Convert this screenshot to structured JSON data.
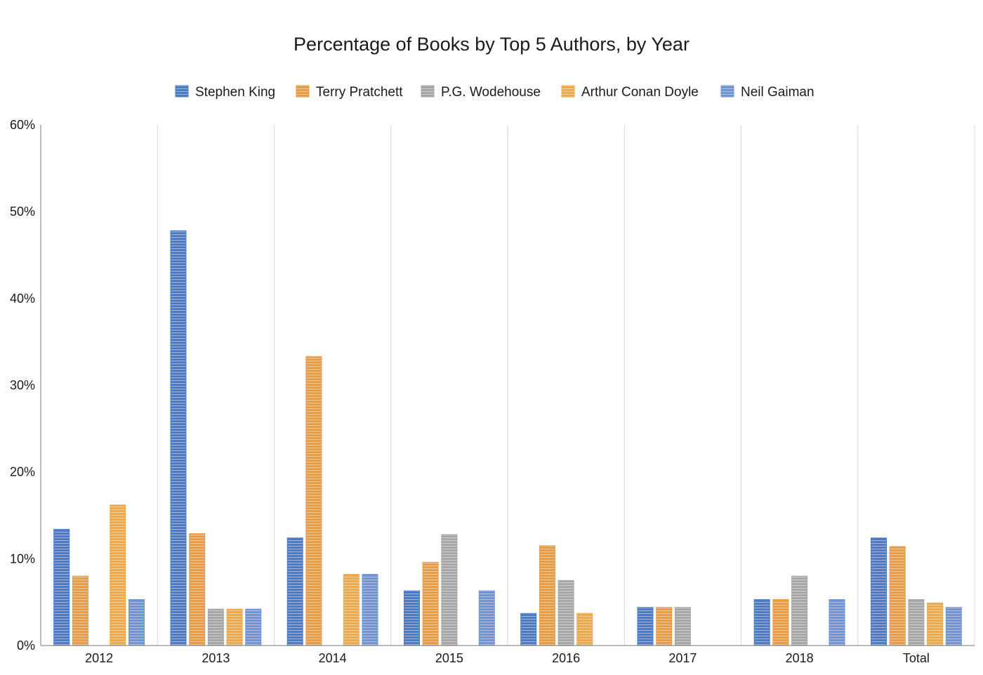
{
  "chart_data": {
    "type": "bar",
    "title": "Percentage of Books by Top 5 Authors, by Year",
    "xlabel": "",
    "ylabel": "",
    "categories": [
      "2012",
      "2013",
      "2014",
      "2015",
      "2016",
      "2017",
      "2018",
      "Total"
    ],
    "ylim": [
      0,
      60
    ],
    "yticks": [
      "0%",
      "10%",
      "20%",
      "30%",
      "40%",
      "50%",
      "60%"
    ],
    "grid": "vertical category separators",
    "legend_position": "top",
    "series": [
      {
        "name": "Stephen King",
        "color": "#4a7cc9",
        "values": [
          13.4,
          47.8,
          12.4,
          6.3,
          3.7,
          4.4,
          5.3,
          12.4
        ]
      },
      {
        "name": "Terry Pratchett",
        "color": "#ee9a3e",
        "values": [
          8.0,
          12.9,
          33.3,
          9.6,
          11.5,
          4.4,
          5.3,
          11.4
        ]
      },
      {
        "name": "P.G. Wodehouse",
        "color": "#a6a6a6",
        "values": [
          0,
          4.2,
          0,
          12.8,
          7.5,
          4.4,
          8.0,
          5.3
        ]
      },
      {
        "name": "Arthur Conan Doyle",
        "color": "#f2a945",
        "values": [
          16.2,
          4.2,
          8.2,
          0,
          3.7,
          0,
          0,
          4.9
        ]
      },
      {
        "name": "Neil Gaiman",
        "color": "#6d94d6",
        "values": [
          5.3,
          4.2,
          8.2,
          6.3,
          0,
          0,
          5.3,
          4.4
        ]
      }
    ]
  }
}
